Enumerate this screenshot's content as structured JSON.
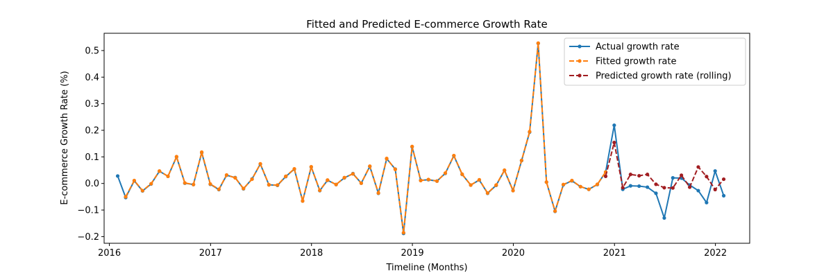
{
  "chart_data": {
    "type": "line",
    "title": "Fitted and Predicted E-commerce Growth Rate",
    "xlabel": "Timeline (Months)",
    "ylabel": "E-commerce Growth Rate (%)",
    "xlim": [
      "2015-12-13",
      "2022-05-05"
    ],
    "ylim": [
      -0.225,
      0.565
    ],
    "x_ticks": [
      "2016",
      "2017",
      "2018",
      "2019",
      "2020",
      "2021",
      "2022"
    ],
    "y_ticks": [
      -0.2,
      -0.1,
      0.0,
      0.1,
      0.2,
      0.3,
      0.4,
      0.5
    ],
    "y_tick_labels": [
      "−0.2",
      "−0.1",
      "0.0",
      "0.1",
      "0.2",
      "0.3",
      "0.4",
      "0.5"
    ],
    "grid": false,
    "legend_position": "top-right",
    "series": [
      {
        "name": "Actual growth rate",
        "color": "#1f77b4",
        "linestyle": "solid",
        "marker": "circle",
        "x": [
          "2016-01-31",
          "2016-02-29",
          "2016-03-31",
          "2016-04-30",
          "2016-05-31",
          "2016-06-30",
          "2016-07-31",
          "2016-08-31",
          "2016-09-30",
          "2016-10-31",
          "2016-11-30",
          "2016-12-31",
          "2017-01-31",
          "2017-02-28",
          "2017-03-31",
          "2017-04-30",
          "2017-05-31",
          "2017-06-30",
          "2017-07-31",
          "2017-08-31",
          "2017-09-30",
          "2017-10-31",
          "2017-11-30",
          "2017-12-31",
          "2018-01-31",
          "2018-02-28",
          "2018-03-31",
          "2018-04-30",
          "2018-05-31",
          "2018-06-30",
          "2018-07-31",
          "2018-08-31",
          "2018-09-30",
          "2018-10-31",
          "2018-11-30",
          "2018-12-31",
          "2019-01-31",
          "2019-02-28",
          "2019-03-31",
          "2019-04-30",
          "2019-05-31",
          "2019-06-30",
          "2019-07-31",
          "2019-08-31",
          "2019-09-30",
          "2019-10-31",
          "2019-11-30",
          "2019-12-31",
          "2020-01-31",
          "2020-02-29",
          "2020-03-31",
          "2020-04-30",
          "2020-05-31",
          "2020-06-30",
          "2020-07-31",
          "2020-08-31",
          "2020-09-30",
          "2020-10-31",
          "2020-11-30",
          "2020-12-31",
          "2021-01-31",
          "2021-02-28",
          "2021-03-31",
          "2021-04-30",
          "2021-05-31",
          "2021-06-30",
          "2021-07-31",
          "2021-08-31",
          "2021-09-30",
          "2021-10-31",
          "2021-11-30",
          "2021-12-31",
          "2022-01-31"
        ],
        "values": [
          0.028,
          -0.053,
          0.01,
          -0.028,
          -0.002,
          0.046,
          0.027,
          0.1,
          0.001,
          -0.004,
          0.116,
          -0.003,
          -0.023,
          0.031,
          0.022,
          -0.02,
          0.017,
          0.073,
          -0.005,
          -0.007,
          0.026,
          0.054,
          -0.066,
          0.062,
          -0.027,
          0.012,
          -0.004,
          0.021,
          0.037,
          0.001,
          0.064,
          -0.037,
          0.093,
          0.054,
          -0.188,
          0.138,
          0.012,
          0.014,
          0.009,
          0.038,
          0.104,
          0.034,
          -0.006,
          0.013,
          -0.037,
          -0.007,
          0.049,
          -0.027,
          0.086,
          0.193,
          0.527,
          0.005,
          -0.105,
          -0.005,
          0.01,
          -0.012,
          -0.022,
          -0.004,
          0.043,
          0.219,
          -0.022,
          -0.009,
          -0.01,
          -0.014,
          -0.037,
          -0.13,
          0.021,
          0.02,
          -0.006,
          -0.027,
          -0.072,
          0.047,
          -0.046
        ]
      },
      {
        "name": "Fitted growth rate",
        "color": "#ff7f0e",
        "linestyle": "dashed",
        "marker": "circle",
        "x": [
          "2016-02-29",
          "2016-03-31",
          "2016-04-30",
          "2016-05-31",
          "2016-06-30",
          "2016-07-31",
          "2016-08-31",
          "2016-09-30",
          "2016-10-31",
          "2016-11-30",
          "2016-12-31",
          "2017-01-31",
          "2017-02-28",
          "2017-03-31",
          "2017-04-30",
          "2017-05-31",
          "2017-06-30",
          "2017-07-31",
          "2017-08-31",
          "2017-09-30",
          "2017-10-31",
          "2017-11-30",
          "2017-12-31",
          "2018-01-31",
          "2018-02-28",
          "2018-03-31",
          "2018-04-30",
          "2018-05-31",
          "2018-06-30",
          "2018-07-31",
          "2018-08-31",
          "2018-09-30",
          "2018-10-31",
          "2018-11-30",
          "2018-12-31",
          "2019-01-31",
          "2019-02-28",
          "2019-03-31",
          "2019-04-30",
          "2019-05-31",
          "2019-06-30",
          "2019-07-31",
          "2019-08-31",
          "2019-09-30",
          "2019-10-31",
          "2019-11-30",
          "2019-12-31",
          "2020-01-31",
          "2020-02-29",
          "2020-03-31",
          "2020-04-30",
          "2020-05-31",
          "2020-06-30",
          "2020-07-31",
          "2020-08-31",
          "2020-09-30",
          "2020-10-31",
          "2020-11-30"
        ],
        "values": [
          -0.05,
          0.011,
          -0.027,
          -0.001,
          0.047,
          0.027,
          0.101,
          0.002,
          -0.004,
          0.118,
          -0.002,
          -0.022,
          0.032,
          0.021,
          -0.019,
          0.016,
          0.074,
          -0.005,
          -0.006,
          0.027,
          0.055,
          -0.066,
          0.063,
          -0.026,
          0.013,
          -0.004,
          0.022,
          0.036,
          0.001,
          0.065,
          -0.036,
          0.094,
          0.053,
          -0.185,
          0.139,
          0.011,
          0.015,
          0.009,
          0.039,
          0.105,
          0.035,
          -0.006,
          0.014,
          -0.036,
          -0.006,
          0.05,
          -0.027,
          0.087,
          0.195,
          0.528,
          0.005,
          -0.104,
          -0.004,
          0.011,
          -0.012,
          -0.022,
          -0.003,
          0.043
        ]
      },
      {
        "name": "Predicted growth rate (rolling)",
        "color": "#a11d21",
        "linestyle": "dashed",
        "marker": "circle",
        "x": [
          "2020-11-30",
          "2020-12-31",
          "2021-01-31",
          "2021-02-28",
          "2021-03-31",
          "2021-04-30",
          "2021-05-31",
          "2021-06-30",
          "2021-07-31",
          "2021-08-31",
          "2021-09-30",
          "2021-10-31",
          "2021-11-30",
          "2021-12-31",
          "2022-01-31"
        ],
        "values": [
          0.027,
          0.154,
          -0.016,
          0.034,
          0.029,
          0.034,
          -0.003,
          -0.016,
          -0.017,
          0.031,
          -0.014,
          0.062,
          0.026,
          -0.023,
          0.016
        ]
      }
    ]
  }
}
